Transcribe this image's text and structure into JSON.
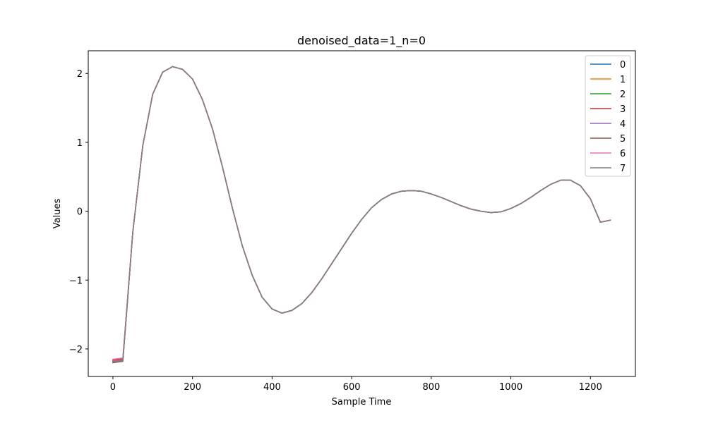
{
  "chart_data": {
    "type": "line",
    "title": "denoised_data=1_n=0",
    "xlabel": "Sample Time",
    "ylabel": "Values",
    "xlim": [
      -62,
      1313
    ],
    "ylim": [
      -2.4,
      2.33
    ],
    "xticks": [
      0,
      200,
      400,
      600,
      800,
      1000,
      1200
    ],
    "yticks": [
      2,
      1,
      0,
      -1,
      -2
    ],
    "ytick_labels": [
      "2",
      "1",
      "0",
      "−1",
      "−2"
    ],
    "grid": false,
    "legend_position": "top-right",
    "x": [
      0,
      25,
      50,
      75,
      100,
      125,
      150,
      175,
      200,
      225,
      250,
      275,
      300,
      325,
      350,
      375,
      400,
      425,
      450,
      475,
      500,
      525,
      550,
      575,
      600,
      625,
      650,
      675,
      700,
      725,
      750,
      775,
      800,
      825,
      850,
      875,
      900,
      925,
      950,
      975,
      1000,
      1025,
      1050,
      1075,
      1100,
      1125,
      1150,
      1175,
      1200,
      1225,
      1250
    ],
    "series": [
      {
        "name": "0",
        "color": "#1f77b4",
        "values": [
          -2.18,
          -2.16,
          -0.3,
          0.95,
          1.7,
          2.02,
          2.1,
          2.06,
          1.92,
          1.62,
          1.2,
          0.65,
          0.05,
          -0.5,
          -0.93,
          -1.25,
          -1.42,
          -1.48,
          -1.44,
          -1.34,
          -1.18,
          -0.98,
          -0.76,
          -0.54,
          -0.32,
          -0.12,
          0.05,
          0.17,
          0.25,
          0.29,
          0.3,
          0.29,
          0.25,
          0.2,
          0.14,
          0.08,
          0.03,
          0.0,
          -0.02,
          -0.01,
          0.04,
          0.11,
          0.2,
          0.3,
          0.39,
          0.45,
          0.45,
          0.37,
          0.18,
          -0.16,
          -0.13
        ]
      },
      {
        "name": "1",
        "color": "#ff7f0e",
        "values": [
          -2.17,
          -2.15,
          -0.3,
          0.95,
          1.7,
          2.02,
          2.1,
          2.06,
          1.92,
          1.62,
          1.2,
          0.65,
          0.05,
          -0.5,
          -0.93,
          -1.25,
          -1.42,
          -1.48,
          -1.44,
          -1.34,
          -1.18,
          -0.98,
          -0.76,
          -0.54,
          -0.32,
          -0.12,
          0.05,
          0.17,
          0.25,
          0.29,
          0.3,
          0.29,
          0.25,
          0.2,
          0.14,
          0.08,
          0.03,
          0.0,
          -0.02,
          -0.01,
          0.04,
          0.11,
          0.2,
          0.3,
          0.39,
          0.45,
          0.45,
          0.37,
          0.18,
          -0.16,
          -0.13
        ]
      },
      {
        "name": "2",
        "color": "#2ca02c",
        "values": [
          -2.19,
          -2.17,
          -0.3,
          0.95,
          1.7,
          2.02,
          2.1,
          2.06,
          1.92,
          1.62,
          1.2,
          0.65,
          0.05,
          -0.5,
          -0.93,
          -1.25,
          -1.42,
          -1.48,
          -1.44,
          -1.34,
          -1.18,
          -0.98,
          -0.76,
          -0.54,
          -0.32,
          -0.12,
          0.05,
          0.17,
          0.25,
          0.29,
          0.3,
          0.29,
          0.25,
          0.2,
          0.14,
          0.08,
          0.03,
          0.0,
          -0.02,
          -0.01,
          0.04,
          0.11,
          0.2,
          0.3,
          0.39,
          0.45,
          0.45,
          0.37,
          0.18,
          -0.16,
          -0.13
        ]
      },
      {
        "name": "3",
        "color": "#d62728",
        "values": [
          -2.16,
          -2.14,
          -0.3,
          0.95,
          1.7,
          2.02,
          2.1,
          2.06,
          1.92,
          1.62,
          1.2,
          0.65,
          0.05,
          -0.5,
          -0.93,
          -1.25,
          -1.42,
          -1.48,
          -1.44,
          -1.34,
          -1.18,
          -0.98,
          -0.76,
          -0.54,
          -0.32,
          -0.12,
          0.05,
          0.17,
          0.25,
          0.29,
          0.3,
          0.29,
          0.25,
          0.2,
          0.14,
          0.08,
          0.03,
          0.0,
          -0.02,
          -0.01,
          0.04,
          0.11,
          0.2,
          0.3,
          0.39,
          0.45,
          0.45,
          0.37,
          0.18,
          -0.16,
          -0.13
        ]
      },
      {
        "name": "4",
        "color": "#9467bd",
        "values": [
          -2.18,
          -2.16,
          -0.3,
          0.95,
          1.7,
          2.02,
          2.1,
          2.06,
          1.92,
          1.62,
          1.2,
          0.65,
          0.05,
          -0.5,
          -0.93,
          -1.25,
          -1.42,
          -1.48,
          -1.44,
          -1.34,
          -1.18,
          -0.98,
          -0.76,
          -0.54,
          -0.32,
          -0.12,
          0.05,
          0.17,
          0.25,
          0.29,
          0.3,
          0.29,
          0.25,
          0.2,
          0.14,
          0.08,
          0.03,
          0.0,
          -0.02,
          -0.01,
          0.04,
          0.11,
          0.2,
          0.3,
          0.39,
          0.45,
          0.45,
          0.37,
          0.18,
          -0.16,
          -0.13
        ]
      },
      {
        "name": "5",
        "color": "#8c564b",
        "values": [
          -2.2,
          -2.18,
          -0.3,
          0.95,
          1.7,
          2.02,
          2.1,
          2.06,
          1.92,
          1.62,
          1.2,
          0.65,
          0.05,
          -0.5,
          -0.93,
          -1.25,
          -1.42,
          -1.48,
          -1.44,
          -1.34,
          -1.18,
          -0.98,
          -0.76,
          -0.54,
          -0.32,
          -0.12,
          0.05,
          0.17,
          0.25,
          0.29,
          0.3,
          0.29,
          0.25,
          0.2,
          0.14,
          0.08,
          0.03,
          0.0,
          -0.02,
          -0.01,
          0.04,
          0.11,
          0.2,
          0.3,
          0.39,
          0.45,
          0.45,
          0.37,
          0.18,
          -0.16,
          -0.13
        ]
      },
      {
        "name": "6",
        "color": "#e377c2",
        "values": [
          -2.15,
          -2.13,
          -0.3,
          0.95,
          1.7,
          2.02,
          2.1,
          2.06,
          1.92,
          1.62,
          1.2,
          0.65,
          0.05,
          -0.5,
          -0.93,
          -1.25,
          -1.42,
          -1.48,
          -1.44,
          -1.34,
          -1.18,
          -0.98,
          -0.76,
          -0.54,
          -0.32,
          -0.12,
          0.05,
          0.17,
          0.25,
          0.29,
          0.3,
          0.29,
          0.25,
          0.2,
          0.14,
          0.08,
          0.03,
          0.0,
          -0.02,
          -0.01,
          0.04,
          0.11,
          0.2,
          0.3,
          0.39,
          0.45,
          0.45,
          0.37,
          0.18,
          -0.16,
          -0.13
        ]
      },
      {
        "name": "7",
        "color": "#7f7f7f",
        "values": [
          -2.19,
          -2.17,
          -0.3,
          0.95,
          1.7,
          2.02,
          2.1,
          2.06,
          1.92,
          1.62,
          1.2,
          0.65,
          0.05,
          -0.5,
          -0.93,
          -1.25,
          -1.42,
          -1.48,
          -1.44,
          -1.34,
          -1.18,
          -0.98,
          -0.76,
          -0.54,
          -0.32,
          -0.12,
          0.05,
          0.17,
          0.25,
          0.29,
          0.3,
          0.29,
          0.25,
          0.2,
          0.14,
          0.08,
          0.03,
          0.0,
          -0.02,
          -0.01,
          0.04,
          0.11,
          0.2,
          0.3,
          0.39,
          0.45,
          0.45,
          0.37,
          0.18,
          -0.16,
          -0.13
        ]
      }
    ]
  }
}
